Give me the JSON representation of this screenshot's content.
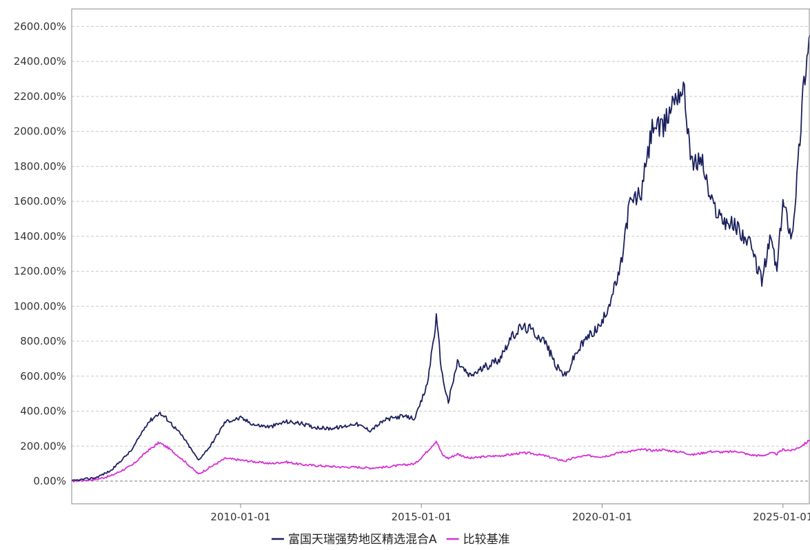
{
  "chart_data": {
    "type": "line",
    "title": "",
    "xlabel": "",
    "ylabel": "",
    "y_unit": "%",
    "ylim": [
      -130,
      2700
    ],
    "xlim": [
      "2005-05-01",
      "2025-10-01"
    ],
    "y_ticks": [
      0,
      200,
      400,
      600,
      800,
      1000,
      1200,
      1400,
      1600,
      1800,
      2000,
      2200,
      2400,
      2600
    ],
    "y_tick_labels": [
      "0.00%",
      "200.00%",
      "400.00%",
      "600.00%",
      "800.00%",
      "1000.00%",
      "1200.00%",
      "1400.00%",
      "1600.00%",
      "1800.00%",
      "2000.00%",
      "2200.00%",
      "2400.00%",
      "2600.00%"
    ],
    "x_ticks": [
      "2010-01-01",
      "2015-01-01",
      "2020-01-01",
      "2025-01-01"
    ],
    "x_tick_labels": [
      "2010-01-01",
      "2015-01-01",
      "2020-01-01",
      "2025-01-01"
    ],
    "grid": "horizontal-dashed",
    "legend_position": "bottom-center",
    "series": [
      {
        "name": "富国天瑞强势地区精选混合A",
        "color": "#1a1f5c",
        "x": [
          "2005-05-01",
          "2006-01-01",
          "2006-06-01",
          "2007-01-01",
          "2007-06-01",
          "2007-10-01",
          "2008-01-01",
          "2008-06-01",
          "2008-11-01",
          "2009-03-01",
          "2009-08-01",
          "2010-01-01",
          "2010-06-01",
          "2010-11-01",
          "2011-04-01",
          "2011-09-01",
          "2012-01-01",
          "2012-06-01",
          "2012-11-01",
          "2013-03-01",
          "2013-08-01",
          "2014-01-01",
          "2014-06-01",
          "2014-11-01",
          "2015-03-01",
          "2015-06-01",
          "2015-08-01",
          "2015-10-01",
          "2016-01-01",
          "2016-05-01",
          "2016-10-01",
          "2017-03-01",
          "2017-06-01",
          "2017-10-01",
          "2018-01-01",
          "2018-06-01",
          "2018-10-01",
          "2019-01-01",
          "2019-04-01",
          "2019-08-01",
          "2020-01-01",
          "2020-04-01",
          "2020-07-01",
          "2020-10-01",
          "2021-02-01",
          "2021-06-01",
          "2021-09-01",
          "2022-01-01",
          "2022-04-01",
          "2022-07-01",
          "2022-10-01",
          "2023-01-01",
          "2023-05-01",
          "2023-10-01",
          "2024-02-01",
          "2024-06-01",
          "2024-09-01",
          "2024-11-01",
          "2025-01-01",
          "2025-04-01",
          "2025-06-01",
          "2025-08-01",
          "2025-10-01"
        ],
        "y": [
          0,
          20,
          60,
          180,
          330,
          390,
          350,
          250,
          120,
          200,
          340,
          360,
          320,
          310,
          340,
          330,
          310,
          300,
          310,
          330,
          290,
          350,
          370,
          360,
          550,
          930,
          600,
          450,
          680,
          600,
          650,
          700,
          800,
          880,
          870,
          800,
          650,
          600,
          720,
          820,
          900,
          1050,
          1200,
          1580,
          1650,
          2050,
          2000,
          2200,
          2250,
          1800,
          1850,
          1600,
          1500,
          1450,
          1350,
          1150,
          1400,
          1200,
          1600,
          1400,
          1800,
          2300,
          2550
        ]
      },
      {
        "name": "比较基准",
        "color": "#d630d6",
        "x": [
          "2005-05-01",
          "2006-01-01",
          "2006-06-01",
          "2007-01-01",
          "2007-06-01",
          "2007-10-01",
          "2008-01-01",
          "2008-06-01",
          "2008-11-01",
          "2009-03-01",
          "2009-08-01",
          "2010-01-01",
          "2010-06-01",
          "2010-11-01",
          "2011-04-01",
          "2011-09-01",
          "2012-01-01",
          "2012-06-01",
          "2012-11-01",
          "2013-03-01",
          "2013-08-01",
          "2014-01-01",
          "2014-06-01",
          "2014-11-01",
          "2015-03-01",
          "2015-06-01",
          "2015-08-01",
          "2015-10-01",
          "2016-01-01",
          "2016-05-01",
          "2016-10-01",
          "2017-03-01",
          "2017-06-01",
          "2017-10-01",
          "2018-01-01",
          "2018-06-01",
          "2018-10-01",
          "2019-01-01",
          "2019-04-01",
          "2019-08-01",
          "2020-01-01",
          "2020-04-01",
          "2020-07-01",
          "2020-10-01",
          "2021-02-01",
          "2021-06-01",
          "2021-09-01",
          "2022-01-01",
          "2022-04-01",
          "2022-07-01",
          "2022-10-01",
          "2023-01-01",
          "2023-05-01",
          "2023-10-01",
          "2024-02-01",
          "2024-06-01",
          "2024-09-01",
          "2024-11-01",
          "2025-01-01",
          "2025-04-01",
          "2025-06-01",
          "2025-08-01",
          "2025-10-01"
        ],
        "y": [
          0,
          10,
          30,
          90,
          170,
          220,
          190,
          120,
          40,
          80,
          130,
          120,
          110,
          100,
          110,
          95,
          90,
          85,
          80,
          80,
          75,
          80,
          90,
          100,
          170,
          230,
          150,
          130,
          155,
          130,
          140,
          145,
          150,
          160,
          160,
          145,
          125,
          115,
          135,
          145,
          140,
          150,
          165,
          170,
          180,
          175,
          180,
          170,
          165,
          150,
          160,
          170,
          165,
          170,
          150,
          145,
          160,
          155,
          180,
          175,
          190,
          210,
          235
        ]
      }
    ]
  }
}
